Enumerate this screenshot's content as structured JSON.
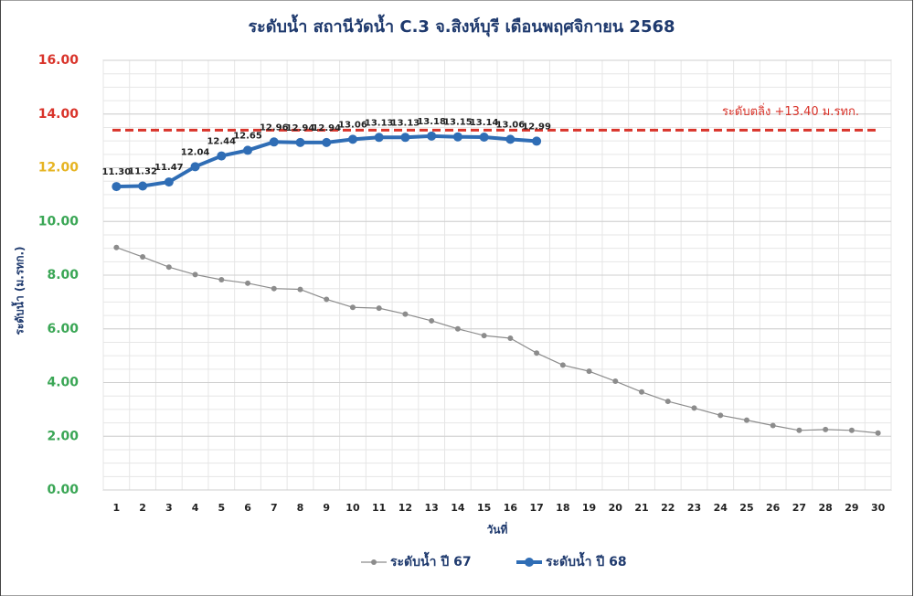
{
  "chart_data": {
    "type": "line",
    "title": "ระดับน้ำ สถานีวัดน้ำ C.3 จ.สิงห์บุรี เดือนพฤศจิกายน 2568",
    "ylabel": "ระดับน้ำ (ม.รทก.)",
    "xlabel": "วันที่",
    "categories": [
      "1",
      "2",
      "3",
      "4",
      "5",
      "6",
      "7",
      "8",
      "9",
      "10",
      "11",
      "12",
      "13",
      "14",
      "15",
      "16",
      "17",
      "18",
      "19",
      "20",
      "21",
      "22",
      "23",
      "24",
      "25",
      "26",
      "27",
      "28",
      "29",
      "30"
    ],
    "series": [
      {
        "name": "ระดับน้ำ ปี 67",
        "color": "#8c8c8c",
        "width": 1.2,
        "marker": 3,
        "values": [
          9.03,
          8.68,
          8.3,
          8.02,
          7.83,
          7.7,
          7.5,
          7.47,
          7.1,
          6.8,
          6.77,
          6.55,
          6.3,
          6.0,
          5.75,
          5.65,
          5.1,
          4.65,
          4.42,
          4.05,
          3.65,
          3.3,
          3.05,
          2.78,
          2.6,
          2.4,
          2.22,
          2.25,
          2.22,
          2.12
        ]
      },
      {
        "name": "ระดับน้ำ ปี 68",
        "color": "#2f6db5",
        "width": 4,
        "marker": 5,
        "values": [
          11.3,
          11.32,
          11.47,
          12.04,
          12.44,
          12.65,
          12.96,
          12.94,
          12.94,
          13.06,
          13.13,
          13.13,
          13.18,
          13.15,
          13.14,
          13.06,
          12.99,
          null,
          null,
          null,
          null,
          null,
          null,
          null,
          null,
          null,
          null,
          null,
          null,
          null
        ],
        "value_labels": [
          "11.30",
          "11.32",
          "11.47",
          "12.04",
          "12.44",
          "12.65",
          "12.96",
          "12.94",
          "12.94",
          "13.06",
          "13.13",
          "13.13",
          "13.18",
          "13.15",
          "13.14",
          "13.06",
          "12.99",
          null,
          null,
          null,
          null,
          null,
          null,
          null,
          null,
          null,
          null,
          null,
          null,
          null
        ]
      }
    ],
    "reference_line": {
      "value": 13.4,
      "label": "ระดับตลิ่ง +13.40 ม.รทก.",
      "color": "#d9342b"
    },
    "ylim": [
      0,
      16
    ],
    "yticks": [
      {
        "value": 0,
        "label": "0.00"
      },
      {
        "value": 2,
        "label": "2.00"
      },
      {
        "value": 4,
        "label": "4.00"
      },
      {
        "value": 6,
        "label": "6.00"
      },
      {
        "value": 8,
        "label": "8.00"
      },
      {
        "value": 10,
        "label": "10.00"
      },
      {
        "value": 12,
        "label": "12.00"
      },
      {
        "value": 14,
        "label": "14.00"
      },
      {
        "value": 16,
        "label": "16.00"
      }
    ],
    "ytick_label_colors": [
      "#3aa655",
      "#3aa655",
      "#3aa655",
      "#3aa655",
      "#3aa655",
      "#3aa655",
      "#e6b422",
      "#d9342b",
      "#d9342b"
    ],
    "grid": true
  }
}
